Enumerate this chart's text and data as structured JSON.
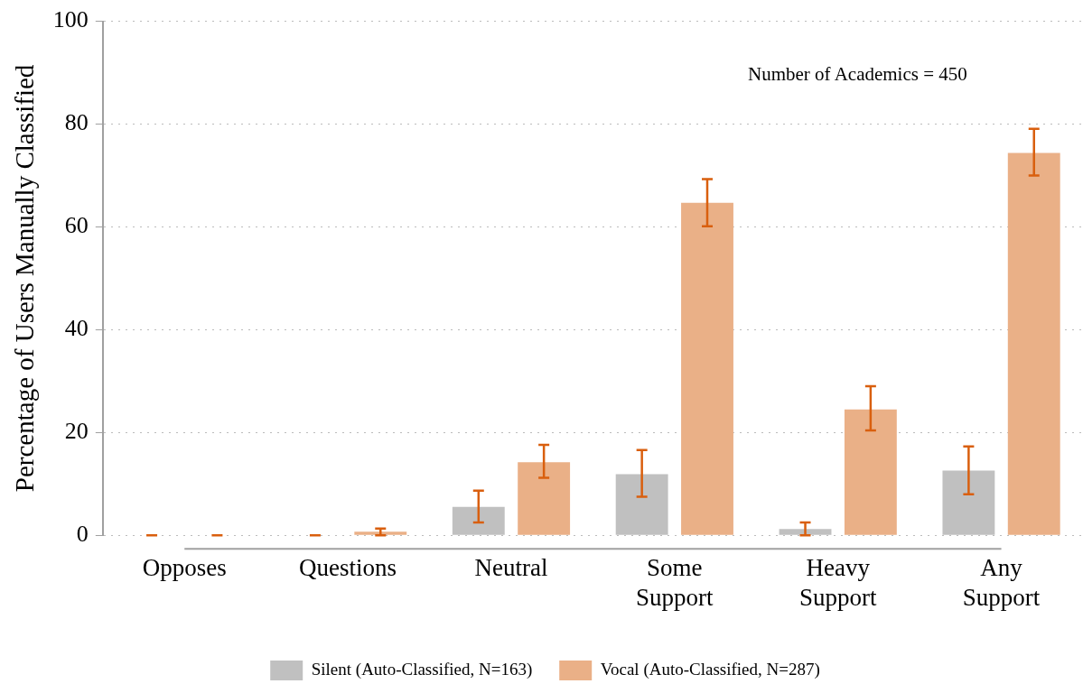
{
  "chart_data": {
    "type": "bar",
    "ylabel": "Percentage of Users Manually Classified",
    "categories": [
      "Opposes",
      "Questions",
      "Neutral",
      "Some Support",
      "Heavy Support",
      "Any Support"
    ],
    "series": [
      {
        "name": "Silent (Auto-Classified, N=163)",
        "color": "#c0c0c0",
        "values": [
          0,
          0,
          5.5,
          11.9,
          1.2,
          12.6
        ],
        "errors": [
          [
            0,
            0
          ],
          [
            0,
            0
          ],
          [
            2.5,
            8.7
          ],
          [
            7.5,
            16.6
          ],
          [
            0,
            2.5
          ],
          [
            8.0,
            17.3
          ]
        ]
      },
      {
        "name": "Vocal (Auto-Classified, N=287)",
        "color": "#eab087",
        "values": [
          0,
          0.7,
          14.2,
          64.7,
          24.5,
          74.4
        ],
        "errors": [
          [
            0,
            0
          ],
          [
            0,
            1.3
          ],
          [
            11.2,
            17.6
          ],
          [
            60.1,
            69.3
          ],
          [
            20.4,
            29.0
          ],
          [
            70.0,
            79.1
          ]
        ]
      }
    ],
    "ylim": [
      0,
      100
    ],
    "yticks": [
      0,
      20,
      40,
      60,
      80,
      100
    ],
    "grid": "y",
    "legend": "bottom",
    "annotations": [
      "Number of Academics = 450"
    ]
  }
}
